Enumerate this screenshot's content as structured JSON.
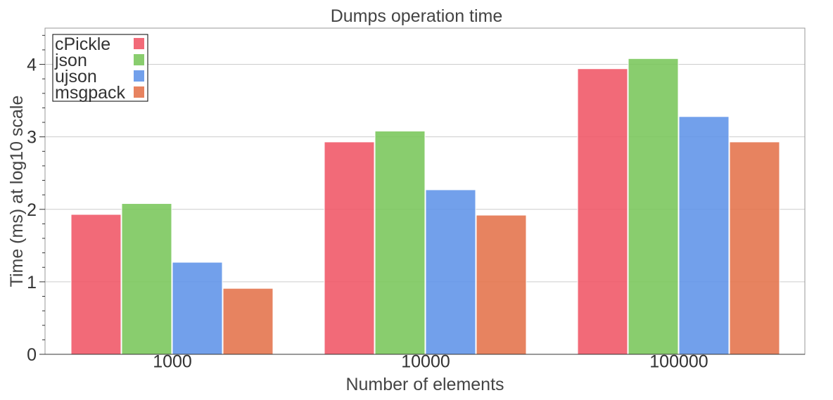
{
  "chart_data": {
    "type": "bar",
    "title": "Dumps operation time",
    "xlabel": "Number of elements",
    "ylabel": "Time (ms) at log10 scale",
    "categories": [
      "1000",
      "10000",
      "100000"
    ],
    "series": [
      {
        "name": "cPickle",
        "values": [
          1.93,
          2.93,
          3.94
        ],
        "color": "#f05565"
      },
      {
        "name": "json",
        "values": [
          2.08,
          3.08,
          4.08
        ],
        "color": "#79c65a"
      },
      {
        "name": "ujson",
        "values": [
          1.27,
          2.27,
          3.28
        ],
        "color": "#5f93e8"
      },
      {
        "name": "msgpack",
        "values": [
          0.91,
          1.92,
          2.93
        ],
        "color": "#e4724a"
      }
    ],
    "ylim": [
      0,
      4.5
    ],
    "yticks": [
      "0",
      "1",
      "2",
      "3",
      "4"
    ],
    "grid": true,
    "legend_position": "top-left"
  }
}
